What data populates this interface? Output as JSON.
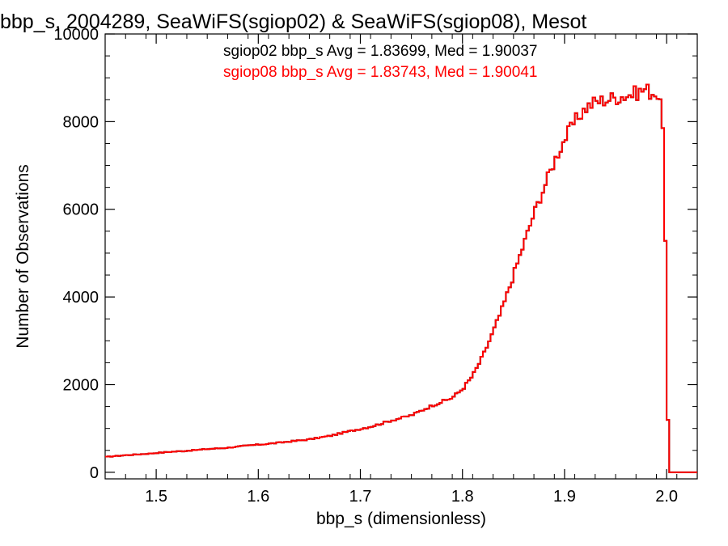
{
  "chart_data": {
    "type": "line",
    "step": true,
    "title": "bbp_s, 2004289, SeaWiFS(sgiop02) & SeaWiFS(sgiop08), Mesot",
    "xlabel": "bbp_s (dimensionless)",
    "ylabel": "Number of Observations",
    "xlim": [
      1.45,
      2.03
    ],
    "ylim": [
      -150,
      10000
    ],
    "xticks": [
      1.5,
      1.6,
      1.7,
      1.8,
      1.9,
      2.0
    ],
    "xtick_labels": [
      "1.5",
      "1.6",
      "1.7",
      "1.8",
      "1.9",
      "2.0"
    ],
    "yticks": [
      0,
      2000,
      4000,
      6000,
      8000,
      10000
    ],
    "ytick_labels": [
      "0",
      "2000",
      "4000",
      "6000",
      "8000",
      "10000"
    ],
    "annotations": [
      {
        "text": "sgiop02 bbp_s Avg = 1.83699, Med = 1.90037",
        "color": "#000000"
      },
      {
        "text": "sgiop08 bbp_s Avg = 1.83743, Med = 1.90041",
        "color": "#ff0000"
      }
    ],
    "colors": {
      "sgiop02": "#000000",
      "sgiop08": "#ff0000"
    },
    "series": [
      {
        "x": [
          1.45,
          1.47,
          1.49,
          1.51,
          1.53,
          1.55,
          1.57,
          1.59,
          1.61,
          1.63,
          1.65,
          1.67,
          1.69,
          1.71,
          1.73,
          1.75,
          1.77,
          1.79,
          1.8,
          1.81,
          1.82,
          1.83,
          1.84,
          1.85,
          1.86,
          1.87,
          1.88,
          1.89,
          1.9,
          1.91,
          1.92,
          1.93,
          1.94,
          1.95,
          1.96,
          1.97,
          1.98,
          1.985,
          1.99,
          1.993,
          1.996,
          1.998,
          2.0,
          2.002,
          2.03
        ],
        "y": [
          350,
          390,
          420,
          460,
          490,
          530,
          560,
          610,
          650,
          700,
          750,
          830,
          940,
          1040,
          1180,
          1300,
          1520,
          1700,
          1900,
          2200,
          2650,
          3200,
          3800,
          4500,
          5200,
          5900,
          6500,
          7100,
          7600,
          8000,
          8300,
          8450,
          8500,
          8550,
          8600,
          8650,
          8750,
          8650,
          8700,
          8400,
          8200,
          6500,
          3150,
          0,
          0
        ]
      },
      {
        "x": [
          1.45,
          1.47,
          1.49,
          1.51,
          1.53,
          1.55,
          1.57,
          1.59,
          1.61,
          1.63,
          1.65,
          1.67,
          1.69,
          1.71,
          1.73,
          1.75,
          1.77,
          1.79,
          1.8,
          1.81,
          1.82,
          1.83,
          1.84,
          1.85,
          1.86,
          1.87,
          1.88,
          1.89,
          1.9,
          1.91,
          1.92,
          1.93,
          1.94,
          1.95,
          1.96,
          1.97,
          1.98,
          1.985,
          1.99,
          1.993,
          1.996,
          1.998,
          2.0,
          2.002,
          2.03
        ],
        "y": [
          350,
          390,
          420,
          460,
          490,
          530,
          560,
          610,
          650,
          700,
          750,
          830,
          940,
          1040,
          1180,
          1300,
          1520,
          1700,
          1900,
          2200,
          2650,
          3200,
          3800,
          4500,
          5200,
          5900,
          6500,
          7100,
          7600,
          8000,
          8300,
          8450,
          8500,
          8550,
          8600,
          8650,
          8750,
          8650,
          8700,
          8400,
          8200,
          6500,
          3150,
          0,
          0
        ]
      }
    ]
  }
}
